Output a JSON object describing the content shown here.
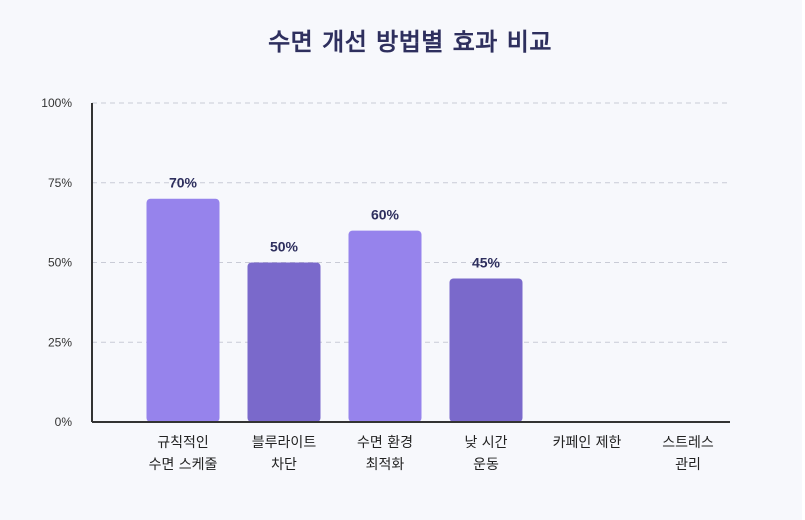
{
  "chart_data": {
    "type": "bar",
    "title": "수면 개선 방법별 효과 비교",
    "categories": [
      [
        "규칙적인",
        "수면 스케줄"
      ],
      [
        "블루라이트",
        "차단"
      ],
      [
        "수면 환경",
        "최적화"
      ],
      [
        "낮 시간",
        "운동"
      ],
      [
        "카페인 제한"
      ],
      [
        "스트레스",
        "관리"
      ]
    ],
    "values": [
      70,
      50,
      60,
      45,
      null,
      null
    ],
    "value_labels": [
      "70%",
      "50%",
      "60%",
      "45%",
      "",
      ""
    ],
    "ylim": [
      0,
      100
    ],
    "yticks": [
      "0%",
      "25%",
      "50%",
      "75%",
      "100%"
    ],
    "ytick_values": [
      0,
      25,
      50,
      75,
      100
    ],
    "grid": true,
    "colors": [
      "#9683ec",
      "#7a69cb",
      "#9683ec",
      "#7a69cb",
      "#9683ec",
      "#7a69cb"
    ],
    "axis_color": "#333333",
    "grid_color": "#c9cbd6"
  }
}
